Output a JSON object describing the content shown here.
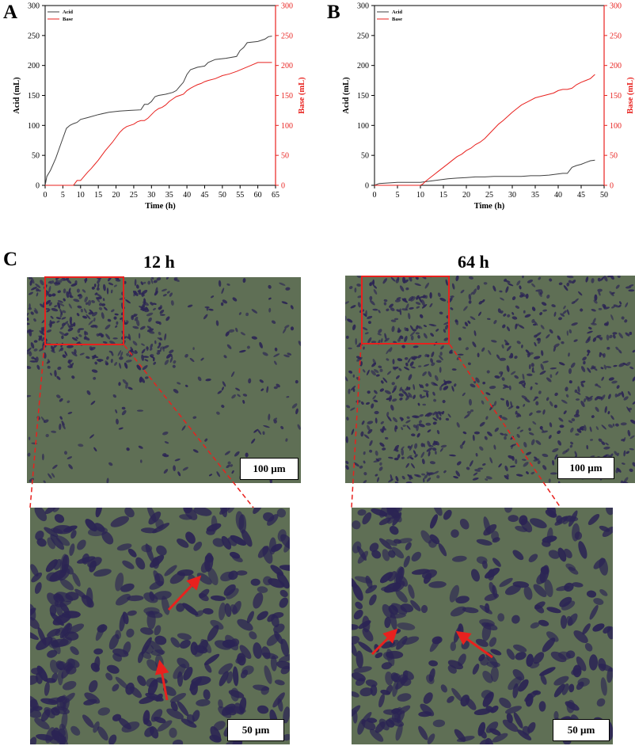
{
  "panels": {
    "a_label": "A",
    "b_label": "B",
    "c_label": "C"
  },
  "chart_data": [
    {
      "type": "line",
      "panel": "A",
      "xlabel": "Time (h)",
      "ylabel": "Acid (mL)",
      "y2label": "Base (mL)",
      "xlim": [
        0,
        65
      ],
      "ylim": [
        0,
        300
      ],
      "y2lim": [
        0,
        300
      ],
      "xticks": [
        0,
        5,
        10,
        15,
        20,
        25,
        30,
        35,
        40,
        45,
        50,
        55,
        60,
        65
      ],
      "yticks": [
        0,
        50,
        100,
        150,
        200,
        250,
        300
      ],
      "legend_position": "top-left",
      "series": [
        {
          "name": "Acid",
          "color": "#404040",
          "axis": "left",
          "x": [
            0,
            0.5,
            1.5,
            3,
            4.5,
            6,
            7,
            8,
            9,
            10,
            12,
            15,
            18,
            21,
            24,
            27,
            28,
            29,
            30,
            31,
            32,
            34,
            36,
            37,
            38,
            39,
            40,
            41,
            43,
            45,
            46,
            48,
            51,
            54,
            55,
            56,
            57,
            60,
            62,
            63,
            64
          ],
          "y": [
            0,
            15,
            25,
            45,
            70,
            95,
            100,
            103,
            105,
            110,
            113,
            118,
            122,
            124,
            125,
            126,
            135,
            135,
            140,
            148,
            150,
            152,
            155,
            158,
            165,
            172,
            185,
            193,
            197,
            199,
            205,
            210,
            212,
            215,
            225,
            230,
            238,
            240,
            244,
            248,
            249
          ]
        },
        {
          "name": "Base",
          "color": "#e8211e",
          "axis": "right",
          "x": [
            0,
            3,
            6,
            8,
            9,
            10,
            11,
            12,
            13,
            14,
            15,
            16,
            17,
            18,
            19,
            20,
            21,
            22,
            23,
            24,
            25,
            26,
            27,
            28,
            29,
            30,
            31,
            32,
            33,
            34,
            35,
            36,
            37,
            38,
            39,
            40,
            41,
            42,
            43,
            44,
            45,
            46,
            48,
            50,
            52,
            54,
            56,
            58,
            60,
            62,
            64
          ],
          "y": [
            0,
            0,
            0,
            0,
            8,
            8,
            15,
            22,
            28,
            35,
            42,
            50,
            58,
            65,
            72,
            80,
            88,
            94,
            98,
            100,
            102,
            106,
            108,
            108,
            112,
            118,
            124,
            128,
            130,
            134,
            140,
            144,
            148,
            150,
            152,
            158,
            162,
            165,
            168,
            170,
            173,
            175,
            178,
            183,
            186,
            190,
            195,
            200,
            205,
            205,
            205
          ]
        }
      ]
    },
    {
      "type": "line",
      "panel": "B",
      "xlabel": "Time (h)",
      "ylabel": "Acid (mL)",
      "y2label": "Base (mL)",
      "xlim": [
        0,
        50
      ],
      "ylim": [
        0,
        300
      ],
      "y2lim": [
        0,
        300
      ],
      "xticks": [
        0,
        5,
        10,
        15,
        20,
        25,
        30,
        35,
        40,
        45,
        50
      ],
      "yticks": [
        0,
        50,
        100,
        150,
        200,
        250,
        300
      ],
      "legend_position": "top-left",
      "series": [
        {
          "name": "Acid",
          "color": "#404040",
          "axis": "left",
          "x": [
            0,
            1,
            3,
            5,
            8,
            10,
            12,
            14,
            16,
            18,
            20,
            22,
            24,
            26,
            28,
            30,
            32,
            34,
            36,
            38,
            40,
            41,
            42,
            43,
            44,
            45,
            46,
            47,
            48
          ],
          "y": [
            0,
            3,
            4,
            5,
            5,
            5,
            7,
            9,
            11,
            12,
            13,
            14,
            14,
            15,
            15,
            15,
            15,
            16,
            16,
            17,
            19,
            20,
            20,
            30,
            33,
            35,
            38,
            41,
            42
          ]
        },
        {
          "name": "Base",
          "color": "#e8211e",
          "axis": "right",
          "x": [
            0,
            2,
            5,
            8,
            10,
            10.5,
            11,
            12,
            13,
            14,
            15,
            16,
            17,
            18,
            19,
            20,
            21,
            22,
            23,
            24,
            25,
            26,
            27,
            28,
            29,
            30,
            31,
            32,
            33,
            34,
            35,
            36,
            37,
            38,
            39,
            40,
            41,
            42,
            43,
            44,
            45,
            46,
            47,
            48
          ],
          "y": [
            0,
            0,
            0,
            0,
            0,
            2,
            6,
            12,
            18,
            24,
            30,
            36,
            42,
            48,
            52,
            58,
            62,
            68,
            72,
            78,
            86,
            94,
            102,
            108,
            115,
            122,
            128,
            134,
            138,
            142,
            146,
            148,
            150,
            152,
            154,
            158,
            160,
            160,
            162,
            168,
            172,
            175,
            178,
            185
          ]
        }
      ]
    }
  ],
  "micrographs": {
    "left_time": "12 h",
    "right_time": "64 h",
    "scale_100": "100 µm",
    "scale_50": "50 µm",
    "accent_color": "#e8211e"
  }
}
